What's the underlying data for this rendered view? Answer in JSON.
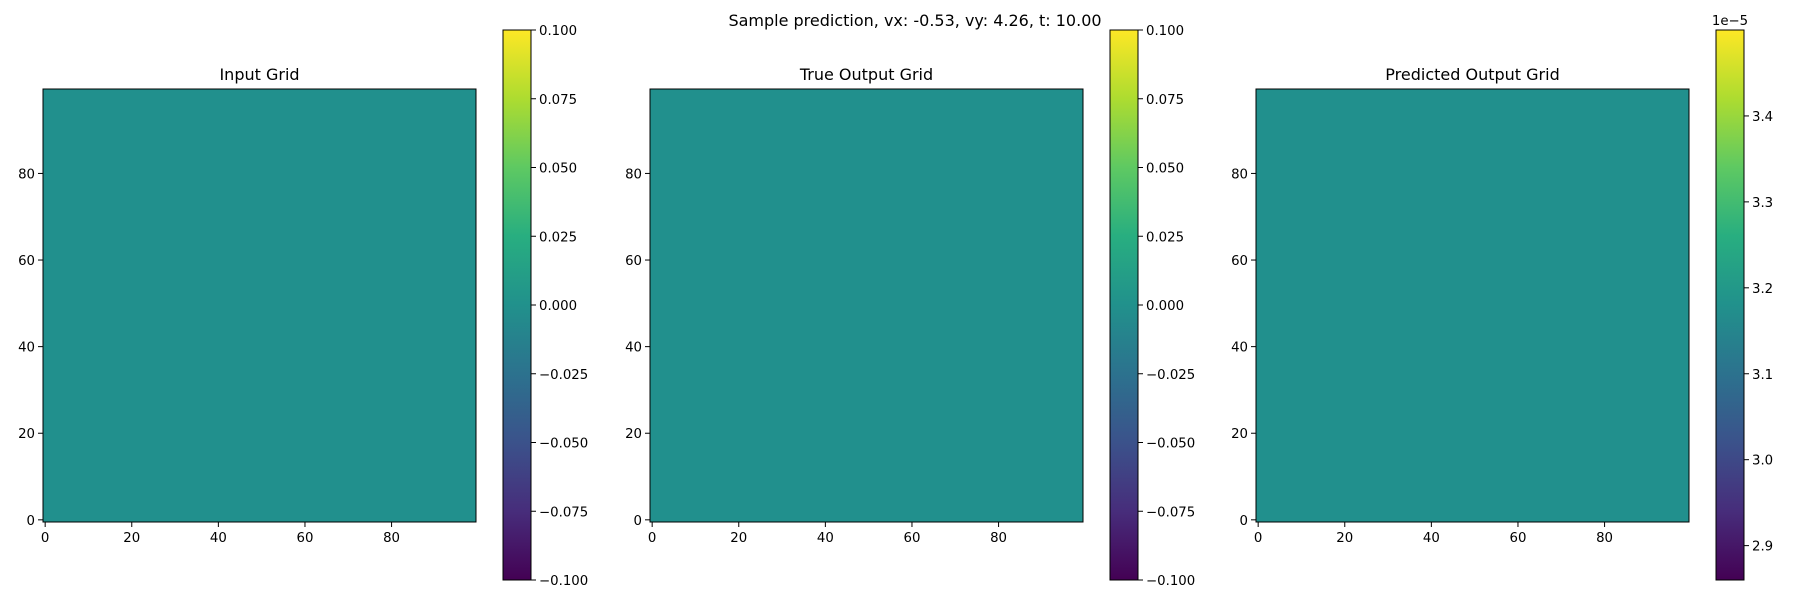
{
  "figure_title": "Sample prediction, vx: -0.53, vy: 4.26, t: 10.00",
  "chart_data": [
    {
      "type": "heatmap",
      "title": "Input Grid",
      "xlabel": "",
      "ylabel": "",
      "x_ticks": [
        "0",
        "20",
        "40",
        "60",
        "80"
      ],
      "y_ticks": [
        "0",
        "20",
        "40",
        "60",
        "80"
      ],
      "grid_shape": [
        100,
        100
      ],
      "value": 0.0,
      "colormap": "viridis",
      "colorbar": {
        "min": -0.1,
        "max": 0.1,
        "ticks": [
          "0.100",
          "0.075",
          "0.050",
          "0.025",
          "0.000",
          "−0.025",
          "−0.050",
          "−0.075",
          "−0.100"
        ],
        "offset_label": ""
      },
      "cell_color": "#21908d"
    },
    {
      "type": "heatmap",
      "title": "True Output Grid",
      "xlabel": "",
      "ylabel": "",
      "x_ticks": [
        "0",
        "20",
        "40",
        "60",
        "80"
      ],
      "y_ticks": [
        "0",
        "20",
        "40",
        "60",
        "80"
      ],
      "grid_shape": [
        100,
        100
      ],
      "value": 0.0,
      "colormap": "viridis",
      "colorbar": {
        "min": -0.1,
        "max": 0.1,
        "ticks": [
          "0.100",
          "0.075",
          "0.050",
          "0.025",
          "0.000",
          "−0.025",
          "−0.050",
          "−0.075",
          "−0.100"
        ],
        "offset_label": ""
      },
      "cell_color": "#21908d"
    },
    {
      "type": "heatmap",
      "title": "Predicted Output Grid",
      "xlabel": "",
      "ylabel": "",
      "x_ticks": [
        "0",
        "20",
        "40",
        "60",
        "80"
      ],
      "y_ticks": [
        "0",
        "20",
        "40",
        "60",
        "80"
      ],
      "grid_shape": [
        100,
        100
      ],
      "value": 3.18e-05,
      "colormap": "viridis",
      "colorbar": {
        "min": 2.86,
        "max": 3.5,
        "ticks": [
          "3.4",
          "3.3",
          "3.2",
          "3.1",
          "3.0",
          "2.9"
        ],
        "offset_label": "1e−5"
      },
      "cell_color": "#21908d"
    }
  ]
}
